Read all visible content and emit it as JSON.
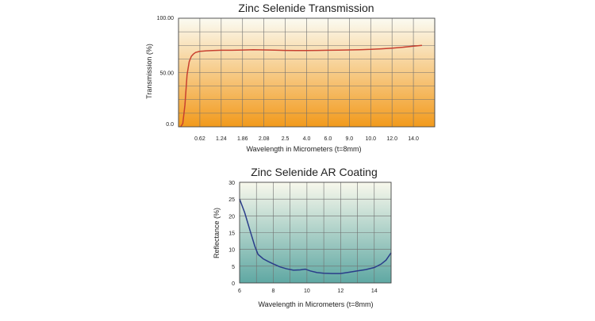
{
  "chart_data": [
    {
      "type": "line",
      "title": "Zinc Selenide Transmission",
      "xlabel": "Wavelength in Micrometers (t=8mm)",
      "ylabel": "Transmission (%)",
      "x_ticks": [
        "0.62",
        "1.24",
        "1.86",
        "2.08",
        "2.5",
        "4.0",
        "6.0",
        "9.0",
        "10.0",
        "12.0",
        "14.0"
      ],
      "y_ticks": [
        "100.00",
        "50.00",
        "0.0"
      ],
      "ylim": [
        0,
        100
      ],
      "grid": true,
      "gradient": [
        "#fbfbf2",
        "#f29a1c"
      ],
      "line_color": "#c8402f",
      "series": [
        {
          "x_pos": [
            0.1,
            0.2,
            0.3,
            0.4,
            0.5,
            0.6,
            0.7,
            0.8,
            1.0,
            1.3,
            1.6,
            2.0,
            2.5,
            3.0,
            3.5,
            4.0,
            4.5,
            5.0,
            5.5,
            6.0,
            6.5,
            7.0,
            7.5,
            8.0,
            8.5,
            9.0,
            9.5,
            10.0,
            10.5,
            11.0,
            11.4
          ],
          "values": [
            0,
            3,
            20,
            48,
            60,
            65,
            67,
            68.5,
            69.5,
            70,
            70.3,
            70.5,
            70.5,
            70.7,
            71,
            70.8,
            70.6,
            70.4,
            70.3,
            70.3,
            70.4,
            70.5,
            70.6,
            70.8,
            71,
            71.3,
            71.8,
            72.5,
            73.3,
            74.2,
            75
          ]
        }
      ]
    },
    {
      "type": "line",
      "title": "Zinc Selenide AR Coating",
      "xlabel": "Wavelength in Micrometers (t=8mm)",
      "ylabel": "Reflectance (%)",
      "x_ticks": [
        "6",
        "8",
        "10",
        "12",
        "14"
      ],
      "y_ticks": [
        "0",
        "5",
        "10",
        "15",
        "20",
        "25",
        "30"
      ],
      "xlim": [
        6,
        15
      ],
      "ylim": [
        0,
        30
      ],
      "grid": true,
      "gradient": [
        "#f8f8ec",
        "#5fa8a3"
      ],
      "line_color": "#2a3d8a",
      "series": [
        {
          "x": [
            6.0,
            6.3,
            6.6,
            6.9,
            7.1,
            7.4,
            7.7,
            8.0,
            8.4,
            8.8,
            9.2,
            9.6,
            9.9,
            10.2,
            10.6,
            11.0,
            11.5,
            12.0,
            12.5,
            13.0,
            13.5,
            14.0,
            14.4,
            14.7,
            15.0
          ],
          "values": [
            25,
            21,
            16,
            11,
            8.5,
            7.2,
            6.4,
            5.7,
            4.8,
            4.2,
            3.8,
            3.9,
            4.1,
            3.6,
            3.1,
            2.9,
            2.8,
            2.8,
            3.2,
            3.6,
            4.0,
            4.6,
            5.6,
            6.8,
            9.0
          ]
        }
      ]
    }
  ]
}
